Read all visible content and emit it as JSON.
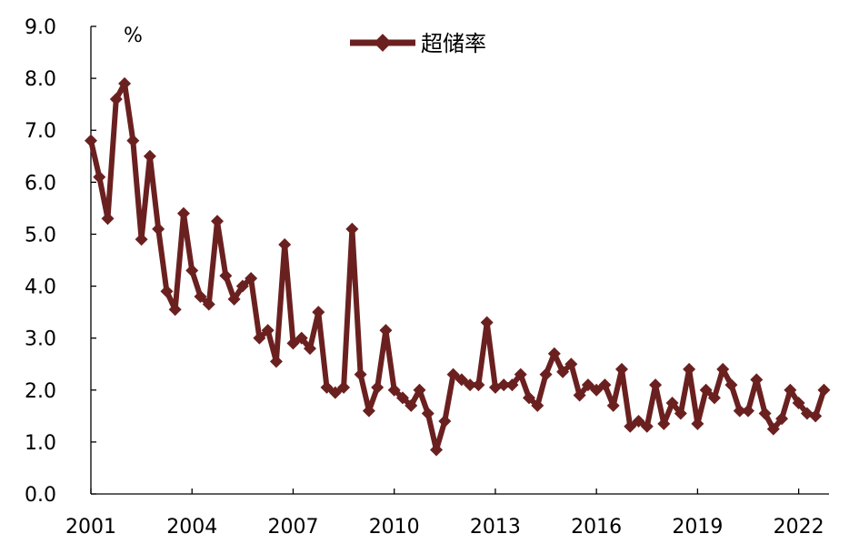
{
  "chart_data": {
    "type": "line",
    "unit": "%",
    "ylim": [
      0,
      9
    ],
    "y_ticks": [
      "0.0",
      "1.0",
      "2.0",
      "3.0",
      "4.0",
      "5.0",
      "6.0",
      "7.0",
      "8.0",
      "9.0"
    ],
    "x_ticks": [
      "2001",
      "2004",
      "2007",
      "2010",
      "2013",
      "2016",
      "2019",
      "2022"
    ],
    "x_range": [
      2001.0,
      2022.9
    ],
    "grid": false,
    "legend_position": "top-center",
    "series": [
      {
        "name": "超储率",
        "color": "#6B2020",
        "marker": "diamond",
        "x": [
          2001.0,
          2001.25,
          2001.5,
          2001.75,
          2002.0,
          2002.25,
          2002.5,
          2002.75,
          2003.0,
          2003.25,
          2003.5,
          2003.75,
          2004.0,
          2004.25,
          2004.5,
          2004.75,
          2005.0,
          2005.25,
          2005.5,
          2005.75,
          2006.0,
          2006.25,
          2006.5,
          2006.75,
          2007.0,
          2007.25,
          2007.5,
          2007.75,
          2008.0,
          2008.25,
          2008.5,
          2008.75,
          2009.0,
          2009.25,
          2009.5,
          2009.75,
          2010.0,
          2010.25,
          2010.5,
          2010.75,
          2011.0,
          2011.25,
          2011.5,
          2011.75,
          2012.0,
          2012.25,
          2012.5,
          2012.75,
          2013.0,
          2013.25,
          2013.5,
          2013.75,
          2014.0,
          2014.25,
          2014.5,
          2014.75,
          2015.0,
          2015.25,
          2015.5,
          2015.75,
          2016.0,
          2016.25,
          2016.5,
          2016.75,
          2017.0,
          2017.25,
          2017.5,
          2017.75,
          2018.0,
          2018.25,
          2018.5,
          2018.75,
          2019.0,
          2019.25,
          2019.5,
          2019.75,
          2020.0,
          2020.25,
          2020.5,
          2020.75,
          2021.0,
          2021.25,
          2021.5,
          2021.75,
          2022.0,
          2022.25,
          2022.5,
          2022.75
        ],
        "values": [
          6.8,
          6.1,
          5.3,
          7.6,
          7.9,
          6.8,
          4.9,
          6.5,
          5.1,
          3.9,
          3.55,
          5.4,
          4.3,
          3.8,
          3.65,
          5.25,
          4.2,
          3.75,
          4.0,
          4.15,
          3.0,
          3.15,
          2.55,
          4.8,
          2.9,
          3.0,
          2.8,
          3.5,
          2.05,
          1.95,
          2.05,
          5.1,
          2.3,
          1.6,
          2.05,
          3.15,
          2.0,
          1.85,
          1.7,
          2.0,
          1.55,
          0.85,
          1.4,
          2.3,
          2.2,
          2.1,
          2.1,
          3.3,
          2.05,
          2.1,
          2.1,
          2.3,
          1.85,
          1.7,
          2.3,
          2.7,
          2.35,
          2.5,
          1.9,
          2.1,
          2.0,
          2.1,
          1.7,
          2.4,
          1.3,
          1.4,
          1.3,
          2.1,
          1.35,
          1.75,
          1.55,
          2.4,
          1.35,
          2.0,
          1.85,
          2.4,
          2.1,
          1.6,
          1.6,
          2.2,
          1.55,
          1.25,
          1.45,
          2.0,
          1.75,
          1.55,
          1.5,
          2.0
        ]
      }
    ]
  }
}
